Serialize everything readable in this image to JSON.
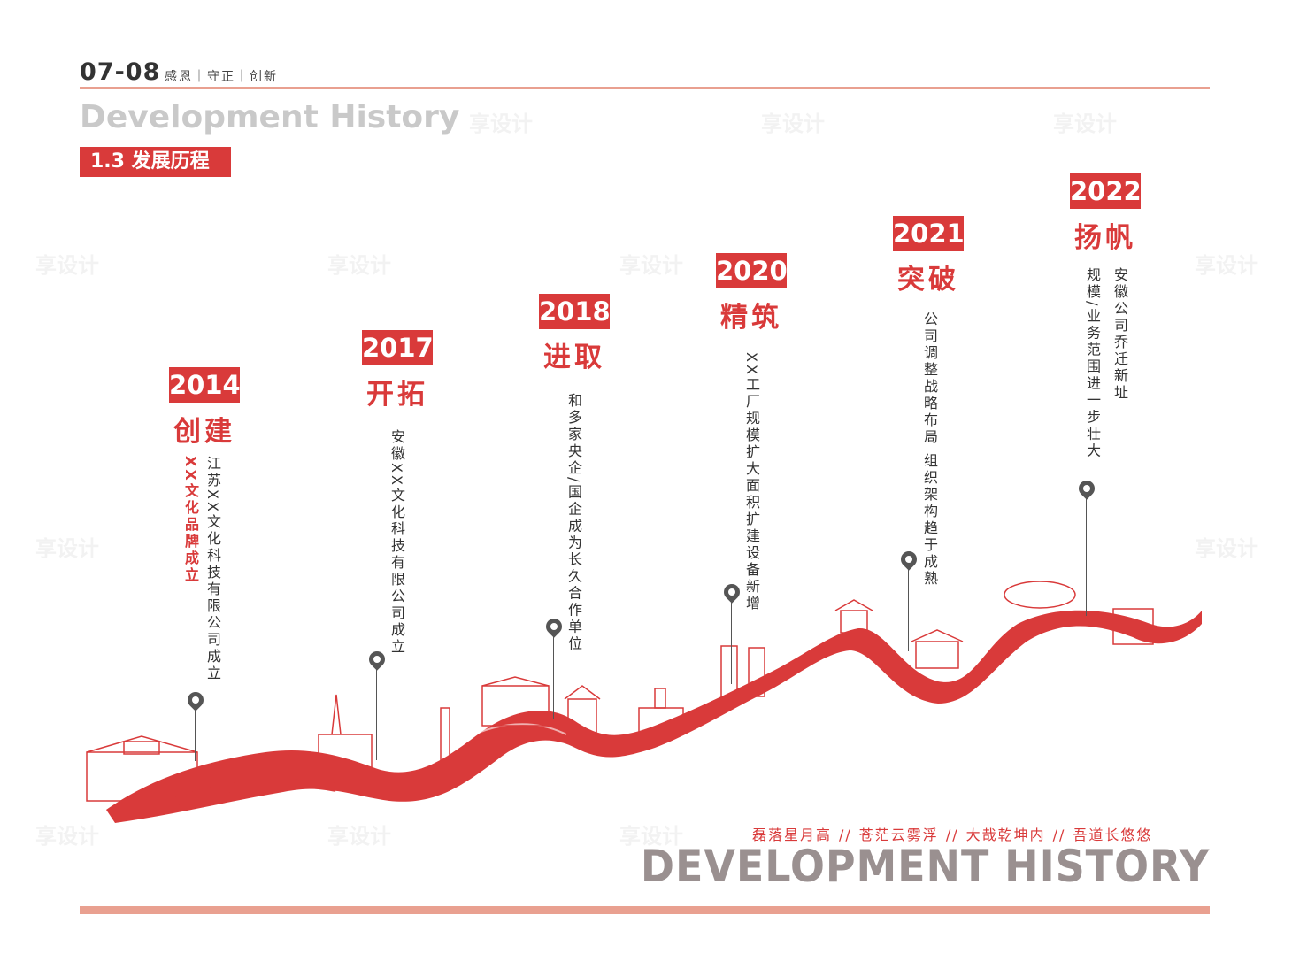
{
  "header": {
    "page_number": "07-08",
    "tagline": "感恩｜守正｜创新",
    "title_en": "Development History",
    "section_label": "1.3 发展历程"
  },
  "milestones": [
    {
      "year": "2014",
      "title": "创建",
      "desc": "江苏XX文化科技有限公司成立",
      "highlight": "XX文化品牌成立"
    },
    {
      "year": "2017",
      "title": "开拓",
      "desc": "安徽XX文化科技有限公司成立"
    },
    {
      "year": "2018",
      "title": "进取",
      "desc": "和多家央企/国企成为长久合作单位"
    },
    {
      "year": "2020",
      "title": "精筑",
      "desc": "XX工厂规模扩大面积扩建设备新增"
    },
    {
      "year": "2021",
      "title": "突破",
      "desc": "公司调整战略布局",
      "desc2": "组织架构趋于成熟"
    },
    {
      "year": "2022",
      "title": "扬帆",
      "desc": "安徽公司乔迁新址",
      "desc2": "规模/业务范围进一步壮大"
    }
  ],
  "footer": {
    "slogan": [
      "磊落星月高",
      "苍茫云雾浮",
      "大哉乾坤内",
      "吾道长悠悠"
    ],
    "slogan_sep": "//",
    "title_en": "DEVELOPMENT HISTORY"
  },
  "watermark_text": "享设计",
  "colors": {
    "accent": "#d93a3a",
    "rule": "#e9a090",
    "grey": "#9a9090"
  }
}
